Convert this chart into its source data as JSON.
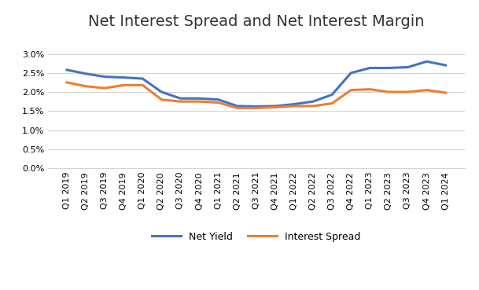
{
  "title": "Net Interest Spread and Net Interest Margin",
  "categories": [
    "Q1 2019",
    "Q2 2019",
    "Q3 2019",
    "Q4 2019",
    "Q1 2020",
    "Q2 2020",
    "Q3 2020",
    "Q4 2020",
    "Q1 2021",
    "Q2 2021",
    "Q3 2021",
    "Q4 2021",
    "Q1 2022",
    "Q2 2022",
    "Q3 2022",
    "Q4 2022",
    "Q1 2023",
    "Q2 2023",
    "Q3 2023",
    "Q4 2023",
    "Q1 2024"
  ],
  "net_yield": [
    0.0258,
    0.0248,
    0.024,
    0.0238,
    0.0235,
    0.02,
    0.0183,
    0.0183,
    0.018,
    0.0163,
    0.0162,
    0.0163,
    0.0168,
    0.0175,
    0.0193,
    0.025,
    0.0263,
    0.0263,
    0.0265,
    0.028,
    0.027
  ],
  "interest_spread": [
    0.0225,
    0.0215,
    0.021,
    0.0218,
    0.0218,
    0.018,
    0.0175,
    0.0175,
    0.0172,
    0.0158,
    0.0158,
    0.016,
    0.0163,
    0.0163,
    0.017,
    0.0205,
    0.0207,
    0.02,
    0.02,
    0.0205,
    0.0198
  ],
  "net_yield_color": "#4472C4",
  "interest_spread_color": "#ED7D31",
  "ylim": [
    0.0,
    0.035
  ],
  "yticks": [
    0.0,
    0.005,
    0.01,
    0.015,
    0.02,
    0.025,
    0.03
  ],
  "background_color": "#FFFFFF",
  "legend_labels": [
    "Net Yield",
    "Interest Spread"
  ],
  "title_fontsize": 14,
  "axis_fontsize": 8,
  "line_width": 2.2,
  "grid_color": "#D3D3D3"
}
